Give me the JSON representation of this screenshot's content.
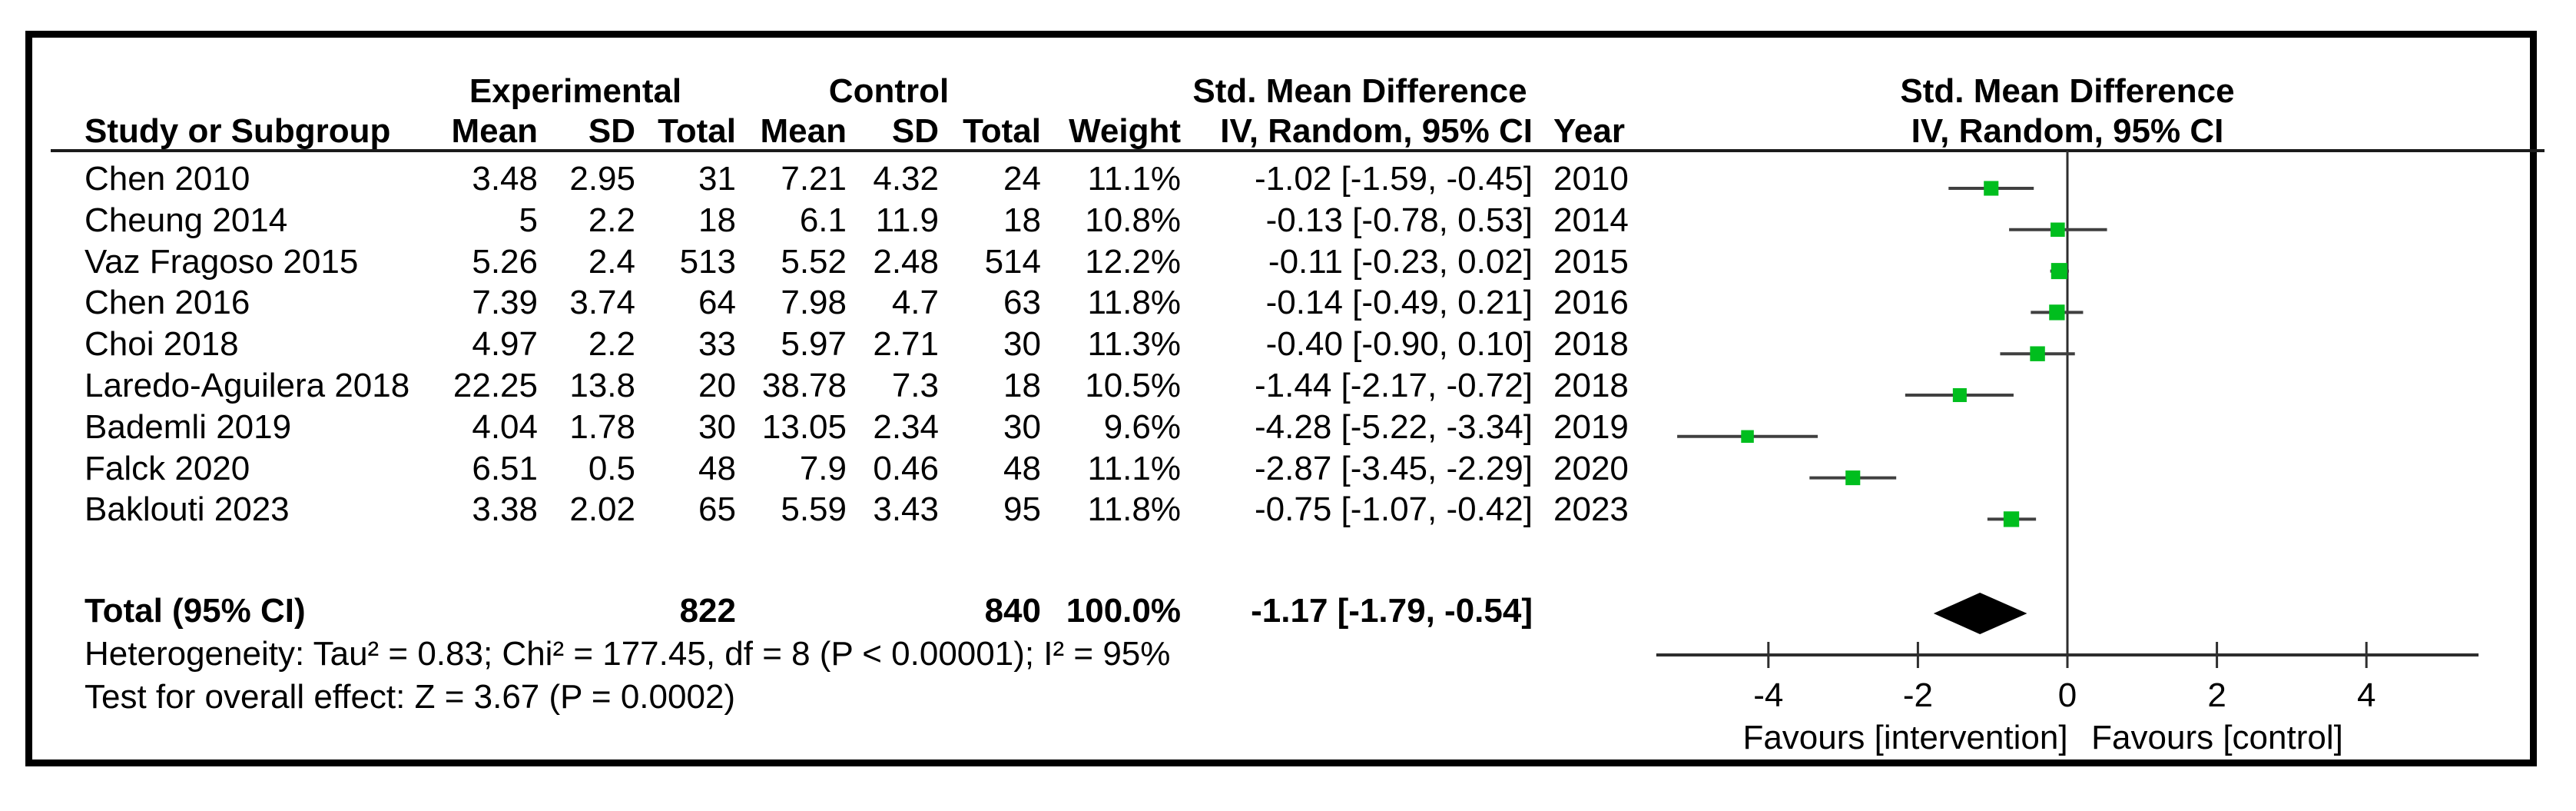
{
  "chart_data": {
    "type": "forest",
    "effect_label": "Std. Mean Difference",
    "method_label": "IV, Random, 95% CI",
    "group_headers": {
      "experimental": "Experimental",
      "control": "Control"
    },
    "columns": {
      "study": "Study or Subgroup",
      "mean": "Mean",
      "sd": "SD",
      "total": "Total",
      "weight": "Weight",
      "year": "Year"
    },
    "studies": [
      {
        "study": "Chen 2010",
        "mean_experimental": "3.48",
        "sd_experimental": "2.95",
        "total_experimental": "31",
        "mean_control": "7.21",
        "sd_control": "4.32",
        "total_control": "24",
        "weight": "11.1%",
        "ci_text": "-1.02 [-1.59, -0.45]",
        "year": "2010",
        "smd": -1.02,
        "ci_lower": -1.59,
        "ci_upper": -0.45,
        "weight_pct": 11.1
      },
      {
        "study": "Cheung 2014",
        "mean_experimental": "5",
        "sd_experimental": "2.2",
        "total_experimental": "18",
        "mean_control": "6.1",
        "sd_control": "11.9",
        "total_control": "18",
        "weight": "10.8%",
        "ci_text": "-0.13 [-0.78, 0.53]",
        "year": "2014",
        "smd": -0.13,
        "ci_lower": -0.78,
        "ci_upper": 0.53,
        "weight_pct": 10.8
      },
      {
        "study": "Vaz Fragoso 2015",
        "mean_experimental": "5.26",
        "sd_experimental": "2.4",
        "total_experimental": "513",
        "mean_control": "5.52",
        "sd_control": "2.48",
        "total_control": "514",
        "weight": "12.2%",
        "ci_text": "-0.11 [-0.23, 0.02]",
        "year": "2015",
        "smd": -0.11,
        "ci_lower": -0.23,
        "ci_upper": 0.02,
        "weight_pct": 12.2
      },
      {
        "study": "Chen 2016",
        "mean_experimental": "7.39",
        "sd_experimental": "3.74",
        "total_experimental": "64",
        "mean_control": "7.98",
        "sd_control": "4.7",
        "total_control": "63",
        "weight": "11.8%",
        "ci_text": "-0.14 [-0.49, 0.21]",
        "year": "2016",
        "smd": -0.14,
        "ci_lower": -0.49,
        "ci_upper": 0.21,
        "weight_pct": 11.8
      },
      {
        "study": "Choi 2018",
        "mean_experimental": "4.97",
        "sd_experimental": "2.2",
        "total_experimental": "33",
        "mean_control": "5.97",
        "sd_control": "2.71",
        "total_control": "30",
        "weight": "11.3%",
        "ci_text": "-0.40 [-0.90, 0.10]",
        "year": "2018",
        "smd": -0.4,
        "ci_lower": -0.9,
        "ci_upper": 0.1,
        "weight_pct": 11.3
      },
      {
        "study": "Laredo-Aguilera 2018",
        "mean_experimental": "22.25",
        "sd_experimental": "13.8",
        "total_experimental": "20",
        "mean_control": "38.78",
        "sd_control": "7.3",
        "total_control": "18",
        "weight": "10.5%",
        "ci_text": "-1.44 [-2.17, -0.72]",
        "year": "2018",
        "smd": -1.44,
        "ci_lower": -2.17,
        "ci_upper": -0.72,
        "weight_pct": 10.5
      },
      {
        "study": "Bademli 2019",
        "mean_experimental": "4.04",
        "sd_experimental": "1.78",
        "total_experimental": "30",
        "mean_control": "13.05",
        "sd_control": "2.34",
        "total_control": "30",
        "weight": "9.6%",
        "ci_text": "-4.28 [-5.22, -3.34]",
        "year": "2019",
        "smd": -4.28,
        "ci_lower": -5.22,
        "ci_upper": -3.34,
        "weight_pct": 9.6
      },
      {
        "study": "Falck 2020",
        "mean_experimental": "6.51",
        "sd_experimental": "0.5",
        "total_experimental": "48",
        "mean_control": "7.9",
        "sd_control": "0.46",
        "total_control": "48",
        "weight": "11.1%",
        "ci_text": "-2.87 [-3.45, -2.29]",
        "year": "2020",
        "smd": -2.87,
        "ci_lower": -3.45,
        "ci_upper": -2.29,
        "weight_pct": 11.1
      },
      {
        "study": "Baklouti 2023",
        "mean_experimental": "3.38",
        "sd_experimental": "2.02",
        "total_experimental": "65",
        "mean_control": "5.59",
        "sd_control": "3.43",
        "total_control": "95",
        "weight": "11.8%",
        "ci_text": "-0.75 [-1.07, -0.42]",
        "year": "2023",
        "smd": -0.75,
        "ci_lower": -1.07,
        "ci_upper": -0.42,
        "weight_pct": 11.8
      }
    ],
    "totals": {
      "label": "Total (95% CI)",
      "total_experimental": "822",
      "total_control": "840",
      "weight": "100.0%",
      "ci_text": "-1.17 [-1.79, -0.54]",
      "smd": -1.17,
      "ci_lower": -1.79,
      "ci_upper": -0.54
    },
    "footnotes": {
      "heterogeneity": "Heterogeneity: Tau² = 0.83; Chi² = 177.45, df = 8 (P < 0.00001); I² = 95%",
      "overall_effect": "Test for overall effect: Z = 3.67 (P = 0.0002)"
    },
    "axis": {
      "min": -5.5,
      "max": 5.5,
      "ticks": [
        -4,
        -2,
        0,
        2,
        4
      ],
      "favours_left": "Favours [intervention]",
      "favours_right": "Favours [control]"
    },
    "colors": {
      "marker_green": "#00BE1E",
      "ci_line": "#404040",
      "axis_line": "#2e2e2e",
      "diamond": "#000000",
      "text": "#000000"
    }
  }
}
